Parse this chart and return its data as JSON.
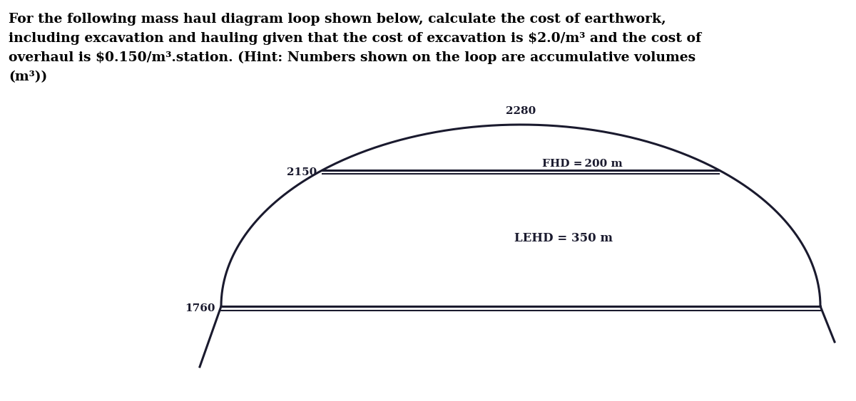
{
  "title_text": "For the following mass haul diagram loop shown below, calculate the cost of earthwork,\nincluding excavation and hauling given that the cost of excavation is $2.0/m³ and the cost of\noverhaul is $0.150/m³.station. (Hint: Numbers shown on the loop are accumulative volumes\n(m³))",
  "title_fontsize": 13.5,
  "background_color": "#ffffff",
  "curve_color": "#1a1a2e",
  "line_color": "#1a1a2e",
  "label_1760": "1760",
  "label_2150": "2150",
  "label_2280": "2280",
  "label_FHD": "FHD = 200 m",
  "label_LEHD": "LEHD = 350 m",
  "font_size_labels": 11,
  "font_size_title": 13.5
}
